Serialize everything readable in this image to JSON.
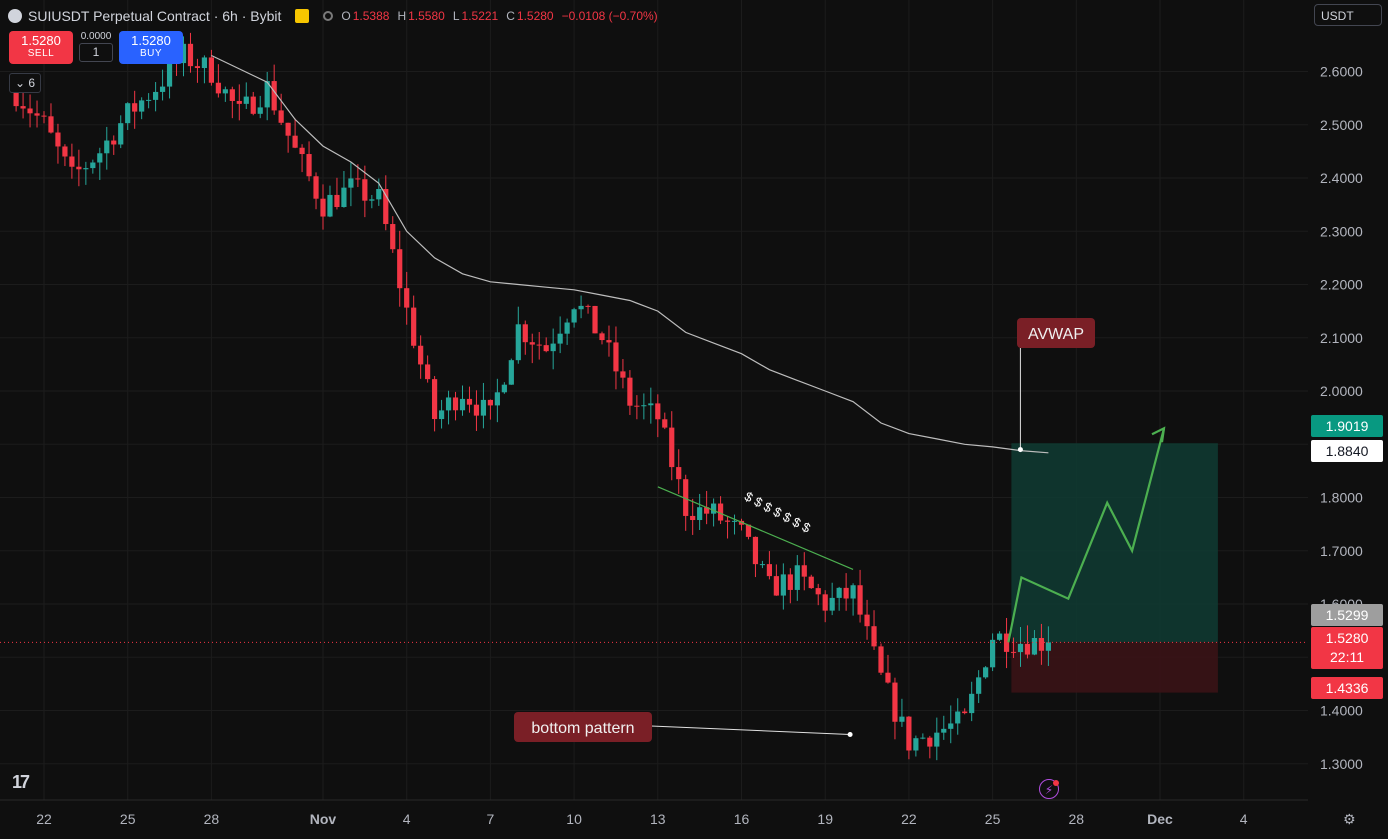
{
  "header": {
    "title": "SUIUSDT Perpetual Contract · 6h · Bybit",
    "ohlc": [
      {
        "key": "O",
        "value": "1.5388"
      },
      {
        "key": "H",
        "value": "1.5580"
      },
      {
        "key": "L",
        "value": "1.5221"
      },
      {
        "key": "C",
        "value": "1.5280"
      }
    ],
    "change": "−0.0108 (−0.70%)"
  },
  "trade_panel": {
    "sell_price": "1.5280",
    "sell_label": "SELL",
    "buy_price": "1.5280",
    "buy_label": "BUY",
    "spread": "0.0000",
    "quantity": "1"
  },
  "indicators_toggle": "6",
  "currency_selector": "USDT",
  "colors": {
    "up": "#26a69a",
    "down": "#f23645",
    "avwap": "#bdbdbd",
    "target_zone": "#0f3b33",
    "stop_zone": "#3a1316",
    "projection": "#4caf50",
    "label_bg": "#7a1f26"
  },
  "annotations": {
    "avwap_label": "AVWAP",
    "bottom_label": "bottom pattern",
    "dollar_signs": "$ $ $ $ $ $ $"
  },
  "price_tags": {
    "target": "1.9019",
    "avwap": "1.8840",
    "ref": "1.5299",
    "last": "1.5280",
    "countdown": "22:11",
    "stop": "1.4336"
  },
  "chart_data": {
    "type": "candlestick",
    "symbol": "SUIUSDT",
    "interval": "6h",
    "ylim": [
      1.25,
      2.71
    ],
    "y_ticks": [
      "2.6000",
      "2.5000",
      "2.4000",
      "2.3000",
      "2.2000",
      "2.1000",
      "2.0000",
      "1.9000",
      "1.8000",
      "1.7000",
      "1.6000",
      "1.5000",
      "1.4000",
      "1.3000"
    ],
    "x_ticks": [
      "22",
      "25",
      "28",
      "Nov",
      "4",
      "7",
      "10",
      "13",
      "16",
      "19",
      "22",
      "25",
      "28",
      "Dec",
      "4"
    ],
    "x_tick_dates": [
      "2024-10-22",
      "2024-10-25",
      "2024-10-28",
      "2024-11-01",
      "2024-11-04",
      "2024-11-07",
      "2024-11-10",
      "2024-11-13",
      "2024-11-16",
      "2024-11-19",
      "2024-11-22",
      "2024-11-25",
      "2024-11-28",
      "2024-12-01",
      "2024-12-04"
    ],
    "anchors": [
      [
        "2024-10-21",
        2.56
      ],
      [
        "2024-10-22",
        2.5
      ],
      [
        "2024-10-23",
        2.4
      ],
      [
        "2024-10-24",
        2.45
      ],
      [
        "2024-10-25",
        2.52
      ],
      [
        "2024-10-26",
        2.57
      ],
      [
        "2024-10-27",
        2.63
      ],
      [
        "2024-10-28",
        2.6
      ],
      [
        "2024-10-29",
        2.52
      ],
      [
        "2024-10-30",
        2.57
      ],
      [
        "2024-10-31",
        2.45
      ],
      [
        "2024-11-01",
        2.35
      ],
      [
        "2024-11-02",
        2.38
      ],
      [
        "2024-11-03",
        2.36
      ],
      [
        "2024-11-04",
        2.15
      ],
      [
        "2024-11-05",
        1.95
      ],
      [
        "2024-11-06",
        2.0
      ],
      [
        "2024-11-07",
        1.95
      ],
      [
        "2024-11-08",
        2.12
      ],
      [
        "2024-11-09",
        2.08
      ],
      [
        "2024-11-10",
        2.17
      ],
      [
        "2024-11-11",
        2.1
      ],
      [
        "2024-11-12",
        1.98
      ],
      [
        "2024-11-13",
        1.95
      ],
      [
        "2024-11-14",
        1.78
      ],
      [
        "2024-11-15",
        1.77
      ],
      [
        "2024-11-16",
        1.73
      ],
      [
        "2024-11-17",
        1.63
      ],
      [
        "2024-11-18",
        1.65
      ],
      [
        "2024-11-19",
        1.6
      ],
      [
        "2024-11-20",
        1.62
      ],
      [
        "2024-11-21",
        1.46
      ],
      [
        "2024-11-22",
        1.34
      ],
      [
        "2024-11-23",
        1.36
      ],
      [
        "2024-11-24",
        1.38
      ],
      [
        "2024-11-25",
        1.54
      ],
      [
        "2024-11-26",
        1.53
      ],
      [
        "2024-11-27",
        1.528
      ]
    ],
    "avwap_series": [
      [
        "2024-10-28",
        2.63
      ],
      [
        "2024-10-30",
        2.58
      ],
      [
        "2024-10-31",
        2.51
      ],
      [
        "2024-11-01",
        2.46
      ],
      [
        "2024-11-02",
        2.43
      ],
      [
        "2024-11-03",
        2.39
      ],
      [
        "2024-11-04",
        2.3
      ],
      [
        "2024-11-05",
        2.25
      ],
      [
        "2024-11-06",
        2.22
      ],
      [
        "2024-11-07",
        2.205
      ],
      [
        "2024-11-08",
        2.2
      ],
      [
        "2024-11-09",
        2.195
      ],
      [
        "2024-11-10",
        2.19
      ],
      [
        "2024-11-11",
        2.18
      ],
      [
        "2024-11-12",
        2.17
      ],
      [
        "2024-11-13",
        2.15
      ],
      [
        "2024-11-14",
        2.11
      ],
      [
        "2024-11-15",
        2.09
      ],
      [
        "2024-11-16",
        2.07
      ],
      [
        "2024-11-17",
        2.04
      ],
      [
        "2024-11-18",
        2.02
      ],
      [
        "2024-11-19",
        2.0
      ],
      [
        "2024-11-20",
        1.98
      ],
      [
        "2024-11-21",
        1.94
      ],
      [
        "2024-11-22",
        1.92
      ],
      [
        "2024-11-23",
        1.91
      ],
      [
        "2024-11-24",
        1.9
      ],
      [
        "2024-11-25",
        1.895
      ],
      [
        "2024-11-26",
        1.888
      ],
      [
        "2024-11-27",
        1.884
      ]
    ],
    "position_box": {
      "start": "2024-11-27",
      "end": "2024-12-02",
      "entry": 1.528,
      "target": 1.9019,
      "stop": 1.4336
    },
    "projection_path": [
      [
        "2024-11-27",
        1.528
      ],
      [
        "2024-11-27",
        1.65
      ],
      [
        "2024-11-28",
        1.61
      ],
      [
        "2024-11-29",
        1.79
      ],
      [
        "2024-11-30",
        1.7
      ],
      [
        "2024-12-01",
        1.93
      ]
    ],
    "trendline": [
      [
        "2024-11-13",
        1.82
      ],
      [
        "2024-11-20",
        1.665
      ]
    ],
    "avwap_marker": [
      "2024-11-27",
      1.89
    ],
    "bottom_marker": [
      "2024-11-20",
      1.355
    ]
  }
}
